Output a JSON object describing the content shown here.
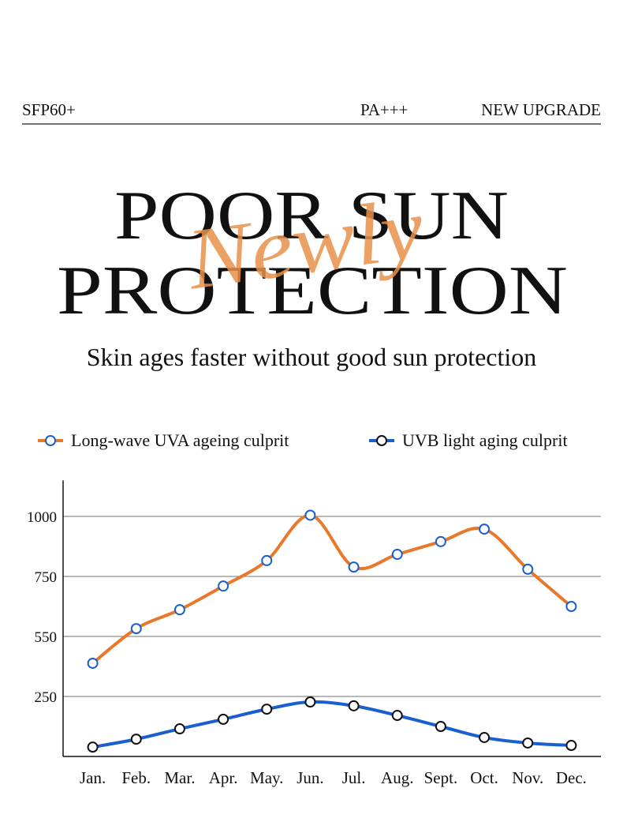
{
  "header": {
    "left": "SFP60+",
    "middle": "PA+++",
    "right": "NEW UPGRADE"
  },
  "headline": {
    "line1": "POOR SUN",
    "line2": "PROTECTION",
    "script": "Newly",
    "subtitle": "Skin ages faster without good sun protection"
  },
  "chart_data": {
    "type": "line",
    "categories": [
      "Jan.",
      "Feb.",
      "Mar.",
      "Apr.",
      "May.",
      "Jun.",
      "Jul.",
      "Aug.",
      "Sept.",
      "Oct.",
      "Nov.",
      "Dec."
    ],
    "series": [
      {
        "name": "Long-wave UVA ageing culprit",
        "color": "#e8782a",
        "marker_edge_color": "#1a5fd0",
        "values": [
          416,
          576,
          639,
          718,
          816,
          1005,
          789,
          842,
          895,
          947,
          780,
          650
        ]
      },
      {
        "name": "UVB light aging culprit",
        "color": "#1a5fd0",
        "marker_edge_color": "#111111",
        "values": [
          39,
          72,
          115,
          155,
          197,
          227,
          211,
          171,
          125,
          79,
          56,
          46
        ]
      }
    ],
    "ylim": [
      0,
      1150
    ],
    "yticks": [
      250,
      550,
      750,
      1000
    ],
    "grid": true,
    "smooth": true
  }
}
